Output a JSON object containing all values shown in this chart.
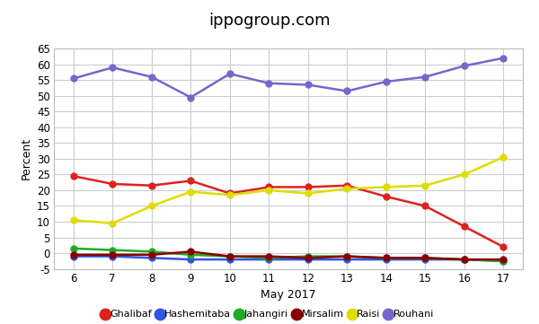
{
  "title": "ippogroup.com",
  "xlabel": "May 2017",
  "ylabel": "Percent",
  "x": [
    6,
    7,
    8,
    9,
    10,
    11,
    12,
    13,
    14,
    15,
    16,
    17
  ],
  "series": {
    "Ghalibaf": {
      "color": "#dd2222",
      "values": [
        24.5,
        22.0,
        21.5,
        23.0,
        19.0,
        21.0,
        21.0,
        21.5,
        18.0,
        15.0,
        8.5,
        2.0
      ]
    },
    "Hashemitaba": {
      "color": "#3355dd",
      "values": [
        -1.0,
        -1.0,
        -1.5,
        -2.0,
        -2.0,
        -2.0,
        -2.0,
        -2.0,
        -2.0,
        -2.0,
        -2.0,
        -2.5
      ]
    },
    "Jahangiri": {
      "color": "#22aa22",
      "values": [
        1.5,
        1.0,
        0.5,
        -0.5,
        -1.0,
        -1.5,
        -1.0,
        -1.0,
        -1.5,
        -1.5,
        -2.0,
        -2.5
      ]
    },
    "Mirsalim": {
      "color": "#880000",
      "values": [
        -0.5,
        -0.5,
        -0.5,
        0.5,
        -1.0,
        -1.0,
        -1.5,
        -1.0,
        -1.5,
        -1.5,
        -2.0,
        -2.0
      ]
    },
    "Raisi": {
      "color": "#dddd00",
      "values": [
        10.5,
        9.5,
        15.0,
        19.5,
        18.5,
        20.0,
        19.0,
        20.5,
        21.0,
        21.5,
        25.0,
        30.5
      ]
    },
    "Rouhani": {
      "color": "#7766cc",
      "values": [
        55.5,
        59.0,
        56.0,
        49.5,
        57.0,
        54.0,
        53.5,
        51.5,
        54.5,
        56.0,
        59.5,
        62.0
      ]
    }
  },
  "ylim": [
    -5,
    65
  ],
  "yticks": [
    -5,
    0,
    5,
    10,
    15,
    20,
    25,
    30,
    35,
    40,
    45,
    50,
    55,
    60,
    65
  ],
  "bg_color": "#ffffff",
  "plot_bg_color": "#ffffff",
  "grid_color": "#cccccc",
  "title_fontsize": 13,
  "axis_fontsize": 9,
  "tick_fontsize": 8.5
}
